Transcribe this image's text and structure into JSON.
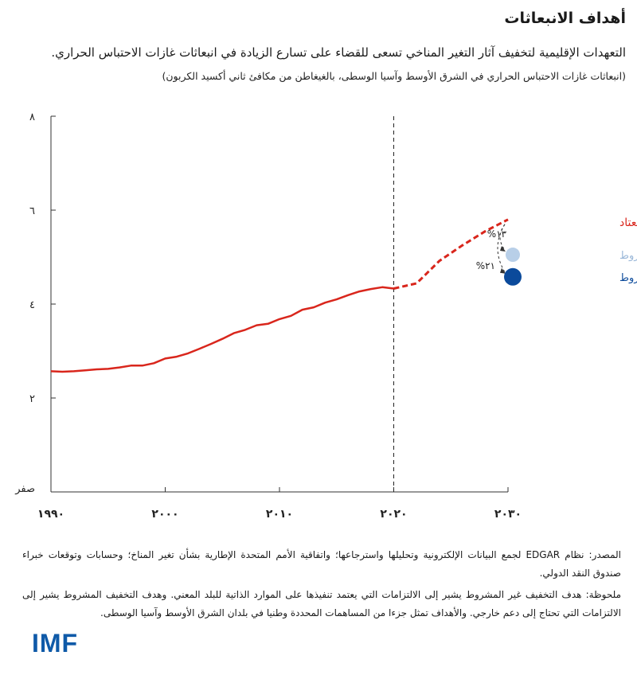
{
  "page": {
    "title": "أهداف الانبعاثات",
    "subtitle": "التعهدات الإقليمية لتخفيف آثار التغير المناخي تسعى للقضاء على تسارع الزيادة في انبعاثات غازات الاحتباس الحراري.",
    "units": "(انبعاثات غازات الاحتباس الحراري في الشرق الأوسط وآسيا الوسطى، بالغيغاطن من مكافئ ثاني أكسيد الكربون)",
    "source": "المصدر: نظام EDGAR لجمع البيانات الإلكترونية وتحليلها واسترجاعها؛ واتفاقية الأمم المتحدة الإطارية بشأن تغير المناخ؛ وحسابات وتوقعات خبراء صندوق النقد الدولي.",
    "note": "ملحوظة: هدف التخفيف غير المشروط يشير إلى الالتزامات التي يعتمد تنفيذها على الموارد الذاتية للبلد المعني. وهدف التخفيف المشروط يشير إلى الالتزامات التي تحتاج إلى دعم خارجي. والأهداف تمثل جزءا من المساهمات المحددة وطنيا في بلدان الشرق الأوسط وآسيا الوسطى.",
    "logo": "IMF"
  },
  "chart_data": {
    "type": "line",
    "xlim": [
      1990,
      2030
    ],
    "ylim": [
      0,
      8
    ],
    "x_ticks": [
      1990,
      2000,
      2010,
      2020,
      2030
    ],
    "x_tick_labels": [
      "١٩٩٠",
      "٢٠٠٠",
      "٢٠١٠",
      "٢٠٢٠",
      "٢٠٣٠"
    ],
    "y_ticks": [
      0,
      2,
      4,
      6,
      8
    ],
    "y_tick_labels": [
      "صفر",
      "٢",
      "٤",
      "٦",
      "٨"
    ],
    "vertical_line_x": 2020,
    "historical": {
      "color": "#d9261c",
      "x": [
        1990,
        1991,
        1992,
        1993,
        1994,
        1995,
        1996,
        1997,
        1998,
        1999,
        2000,
        2001,
        2002,
        2003,
        2004,
        2005,
        2006,
        2007,
        2008,
        2009,
        2010,
        2011,
        2012,
        2013,
        2014,
        2015,
        2016,
        2017,
        2018,
        2019,
        2020
      ],
      "y": [
        2.57,
        2.56,
        2.57,
        2.59,
        2.61,
        2.62,
        2.65,
        2.69,
        2.69,
        2.74,
        2.84,
        2.88,
        2.95,
        3.05,
        3.15,
        3.26,
        3.38,
        3.45,
        3.55,
        3.58,
        3.68,
        3.75,
        3.88,
        3.93,
        4.03,
        4.1,
        4.19,
        4.27,
        4.32,
        4.36,
        4.33
      ]
    },
    "projection": {
      "name": "سيناريو المسار المعتاد",
      "color": "#d9261c",
      "x": [
        2020,
        2022,
        2024,
        2026,
        2028,
        2030
      ],
      "y": [
        4.33,
        4.44,
        4.92,
        5.25,
        5.55,
        5.8
      ]
    },
    "targets": [
      {
        "name": "هدف التخفيف غير المشروط",
        "x": 2030,
        "y": 5.05,
        "color": "#b8cfe8",
        "reduction_label": "%١٣"
      },
      {
        "name": "هدف التخفيف المشروط",
        "x": 2030,
        "y": 4.58,
        "color": "#0b4a9b",
        "reduction_label": "%٢١"
      }
    ]
  }
}
